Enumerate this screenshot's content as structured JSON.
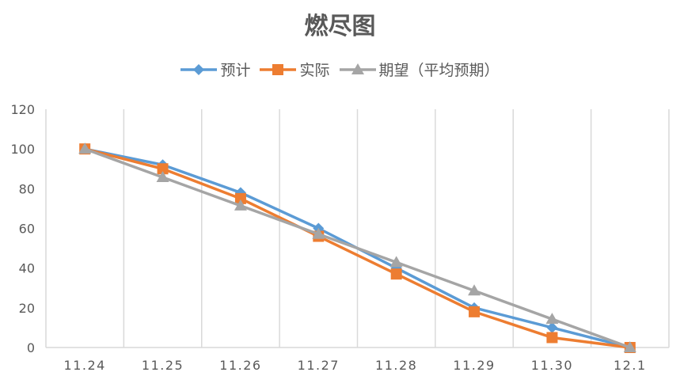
{
  "chart_data": {
    "type": "line",
    "title": "燃尽图",
    "xlabel": "",
    "ylabel": "",
    "categories": [
      "11.24",
      "11.25",
      "11.26",
      "11.27",
      "11.28",
      "11.29",
      "11.30",
      "12.1"
    ],
    "ylim": [
      0,
      120
    ],
    "yticks": [
      0,
      20,
      40,
      60,
      80,
      100,
      120
    ],
    "grid": "vertical",
    "legend_position": "top",
    "series": [
      {
        "name": "预计",
        "color": "#5B9BD5",
        "marker": "diamond",
        "values": [
          100,
          92,
          78,
          60,
          40,
          20,
          10,
          0
        ]
      },
      {
        "name": "实际",
        "color": "#ED7D31",
        "marker": "square",
        "values": [
          100,
          90,
          75,
          56,
          37,
          18,
          5,
          0
        ]
      },
      {
        "name": "期望（平均预期）",
        "color": "#A5A5A5",
        "marker": "triangle",
        "values": [
          100,
          85.7,
          71.4,
          57.1,
          42.9,
          28.6,
          14.3,
          0
        ]
      }
    ]
  }
}
